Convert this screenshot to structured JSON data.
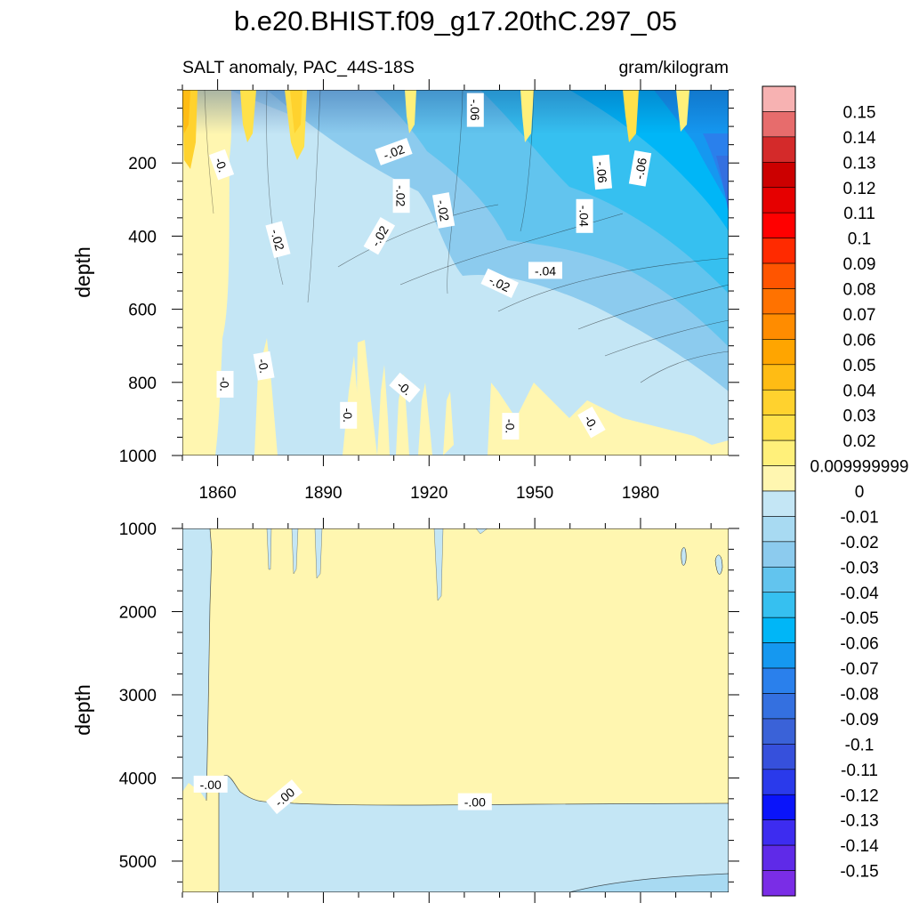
{
  "chart_data": {
    "title": "b.e20.BHIST.f09_g17.20thC.297_05",
    "subtitle_left": "SALT anomaly, PAC_44S-18S",
    "subtitle_right": "gram/kilogram",
    "type": "heatmap",
    "xlim": [
      1850,
      2005
    ],
    "x_ticks": [
      1860,
      1890,
      1920,
      1950,
      1980
    ],
    "panels": [
      {
        "name": "upper",
        "ylabel": "depth",
        "ylim": [
          0,
          1000
        ],
        "y_ticks": [
          200,
          400,
          600,
          800,
          1000
        ],
        "y_tick_labels": [
          "200",
          "400",
          "600",
          "800",
          "1000"
        ],
        "contour_labels": [
          {
            "text": "-.06",
            "x": 1933,
            "y": 55,
            "rot": 90
          },
          {
            "text": "-.02",
            "x": 1910,
            "y": 170,
            "rot": -20
          },
          {
            "text": "-0.",
            "x": 1861,
            "y": 205,
            "rot": 70
          },
          {
            "text": "-.02",
            "x": 1912,
            "y": 290,
            "rot": 90
          },
          {
            "text": "-.02",
            "x": 1924,
            "y": 330,
            "rot": 80
          },
          {
            "text": "-.06",
            "x": 1969,
            "y": 225,
            "rot": 85
          },
          {
            "text": "-.06",
            "x": 1980,
            "y": 215,
            "rot": -80
          },
          {
            "text": "-.04",
            "x": 1964,
            "y": 345,
            "rot": 90
          },
          {
            "text": "-.02",
            "x": 1877,
            "y": 410,
            "rot": 75
          },
          {
            "text": "-.02",
            "x": 1906,
            "y": 400,
            "rot": -60
          },
          {
            "text": "-.04",
            "x": 1953,
            "y": 495,
            "rot": 0
          },
          {
            "text": "-.02",
            "x": 1940,
            "y": 530,
            "rot": 25
          },
          {
            "text": "-0.",
            "x": 1873,
            "y": 755,
            "rot": 80
          },
          {
            "text": "-0.",
            "x": 1862,
            "y": 805,
            "rot": 90
          },
          {
            "text": "-0.",
            "x": 1913,
            "y": 815,
            "rot": 40
          },
          {
            "text": "-0.",
            "x": 1897,
            "y": 890,
            "rot": 90
          },
          {
            "text": "-0.",
            "x": 1943,
            "y": 920,
            "rot": 90
          },
          {
            "text": "-0.",
            "x": 1966,
            "y": 910,
            "rot": 60
          }
        ]
      },
      {
        "name": "lower",
        "ylabel": "depth",
        "ylim": [
          1000,
          5375
        ],
        "y_ticks": [
          1000,
          2000,
          3000,
          4000,
          5000
        ],
        "y_tick_labels": [
          "1000",
          "2000",
          "3000",
          "4000",
          "5000"
        ],
        "contour_labels": [
          {
            "text": "-.00",
            "x": 1858,
            "y": 4080,
            "rot": 0
          },
          {
            "text": "-.00",
            "x": 1879,
            "y": 4230,
            "rot": -40
          },
          {
            "text": "-.00",
            "x": 1933,
            "y": 4290,
            "rot": 0
          }
        ]
      }
    ],
    "colorbar": {
      "levels": [
        {
          "label": "0.15",
          "color": "#f7b2b2"
        },
        {
          "label": "0.14",
          "color": "#e76c6c"
        },
        {
          "label": "0.13",
          "color": "#d42a2a"
        },
        {
          "label": "0.12",
          "color": "#cc0000"
        },
        {
          "label": "0.11",
          "color": "#e60000"
        },
        {
          "label": "0.1",
          "color": "#ff0000"
        },
        {
          "label": "0.09",
          "color": "#ff2a00"
        },
        {
          "label": "0.08",
          "color": "#ff5500"
        },
        {
          "label": "0.07",
          "color": "#ff7200"
        },
        {
          "label": "0.06",
          "color": "#ff8c00"
        },
        {
          "label": "0.05",
          "color": "#ffa500"
        },
        {
          "label": "0.04",
          "color": "#ffbc14"
        },
        {
          "label": "0.03",
          "color": "#ffd22e"
        },
        {
          "label": "0.02",
          "color": "#ffe14a"
        },
        {
          "label": "0.009999999",
          "color": "#fff07a"
        },
        {
          "label": "0",
          "color": "#fff6b0"
        },
        {
          "label": "-0.01",
          "color": "#c4e6f5"
        },
        {
          "label": "-0.02",
          "color": "#a8daf2"
        },
        {
          "label": "-0.03",
          "color": "#8ccbee"
        },
        {
          "label": "-0.04",
          "color": "#62c4ee"
        },
        {
          "label": "-0.05",
          "color": "#36c0f0"
        },
        {
          "label": "-0.06",
          "color": "#00b6f7"
        },
        {
          "label": "-0.07",
          "color": "#1598f0"
        },
        {
          "label": "-0.08",
          "color": "#2a80ec"
        },
        {
          "label": "-0.09",
          "color": "#3470e0"
        },
        {
          "label": "-0.1",
          "color": "#3a62d8"
        },
        {
          "label": "-0.11",
          "color": "#3650dc"
        },
        {
          "label": "-0.12",
          "color": "#2a3aeb"
        },
        {
          "label": "-0.13",
          "color": "#0a14fa"
        },
        {
          "label": "-0.14",
          "color": "#3d2cf0"
        },
        {
          "label": "-0.15",
          "color": "#5f2ae8"
        }
      ],
      "top_color": "#f7b2b2",
      "bottom_color": "#7a2de6"
    }
  }
}
